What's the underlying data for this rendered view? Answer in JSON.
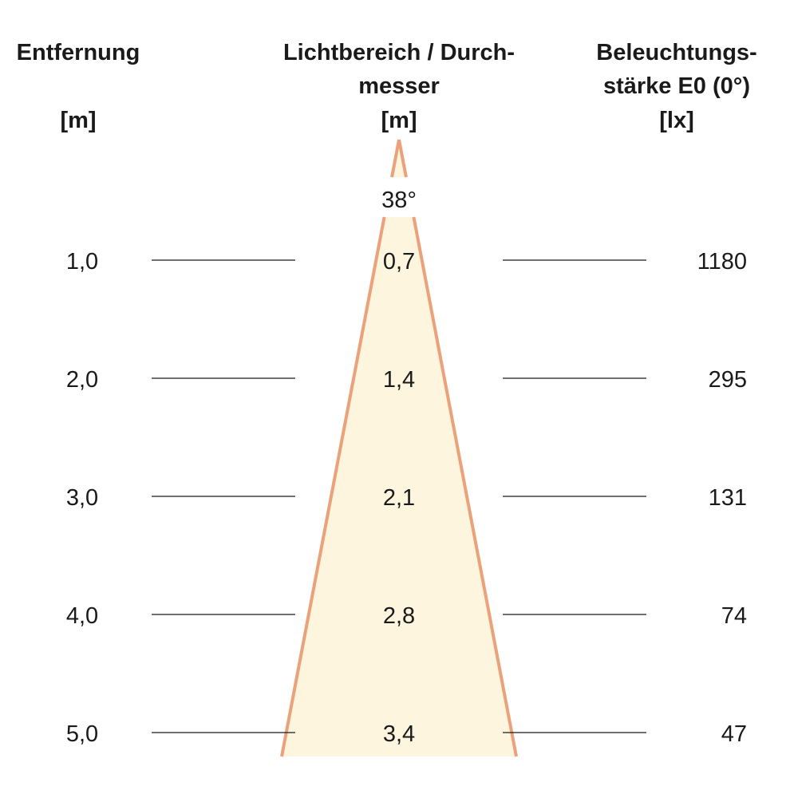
{
  "headers": {
    "distance": {
      "line1": "Entfernung",
      "unit": "[m]"
    },
    "diameter": {
      "line1": "Lichtbereich / Durch-",
      "line2": "messer",
      "unit": "[m]"
    },
    "illuminance": {
      "line1": "Beleuchtungs-",
      "line2": "stärke E0 (0°)",
      "unit": "[lx]"
    }
  },
  "beam_angle": "38°",
  "rows": [
    {
      "distance": "1,0",
      "diameter": "0,7",
      "illuminance": "1180"
    },
    {
      "distance": "2,0",
      "diameter": "1,4",
      "illuminance": "295"
    },
    {
      "distance": "3,0",
      "diameter": "2,1",
      "illuminance": "131"
    },
    {
      "distance": "4,0",
      "diameter": "2,8",
      "illuminance": "74"
    },
    {
      "distance": "5,0",
      "diameter": "3,4",
      "illuminance": "47"
    }
  ],
  "colors": {
    "cone_fill": "#fdf5de",
    "cone_edge": "#eba27a",
    "lines": "#1a1a1a"
  }
}
